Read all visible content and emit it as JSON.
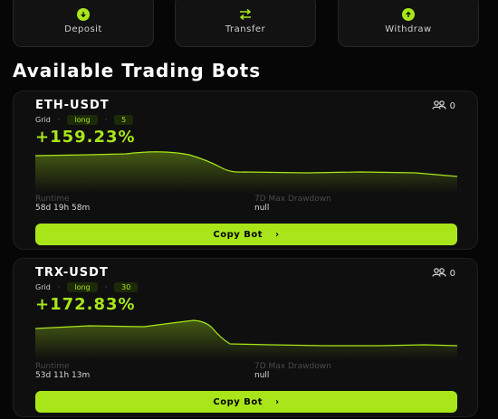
{
  "actions": [
    {
      "label": "Deposit",
      "icon": "arrow-down-circle-icon"
    },
    {
      "label": "Transfer",
      "icon": "swap-arrows-icon"
    },
    {
      "label": "Withdraw",
      "icon": "arrow-up-circle-icon"
    }
  ],
  "section_title": "Available Trading Bots",
  "bots": [
    {
      "pair": "ETH-USDT",
      "copiers": "0",
      "strategy": "Grid",
      "direction": "long",
      "leverage": "5",
      "return_pct": "+159.23%",
      "runtime_label": "Runtime",
      "runtime_value": "58d 19h 58m",
      "drawdown_label": "7D Max Drawdown",
      "drawdown_value": "null",
      "button_label": "Copy Bot",
      "button_chevron": "›"
    },
    {
      "pair": "TRX-USDT",
      "copiers": "0",
      "strategy": "Grid",
      "direction": "long",
      "leverage": "30",
      "return_pct": "+172.83%",
      "runtime_label": "Runtime",
      "runtime_value": "53d 11h 13m",
      "drawdown_label": "7D Max Drawdown",
      "drawdown_value": "null",
      "button_label": "Copy Bot",
      "button_chevron": "›"
    }
  ],
  "colors": {
    "accent": "#a8e61a",
    "background": "#060606",
    "card": "#0f0f0f"
  }
}
